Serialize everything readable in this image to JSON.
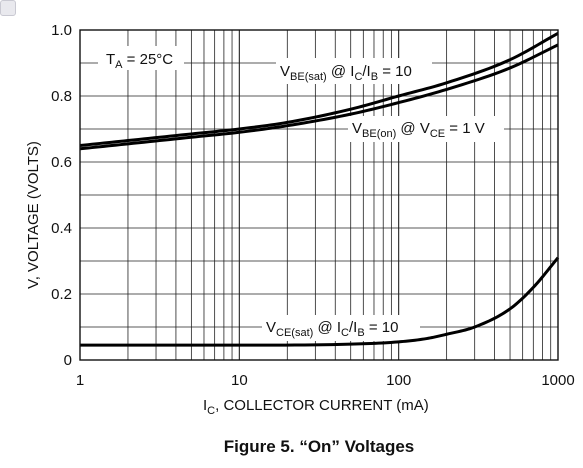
{
  "caption": "Figure 5. “On” Voltages",
  "chart_data": {
    "type": "line",
    "xscale": "log",
    "xlim": [
      1,
      1000
    ],
    "ylim": [
      0,
      1.0
    ],
    "grid": true,
    "xticks": [
      "1",
      "10",
      "100",
      "1000"
    ],
    "yticks": [
      "0",
      "0.2",
      "0.4",
      "0.6",
      "0.8",
      "1.0"
    ],
    "xlabel": {
      "main": "I",
      "sub": "C",
      "rest": ", COLLECTOR CURRENT (mA)"
    },
    "ylabel": "V, VOLTAGE (VOLTS)",
    "annotations": {
      "ta": {
        "main": "T",
        "sub": "A",
        "rest": " = 25°C"
      },
      "vbe_sat": {
        "v": "V",
        "vsub": "BE(sat)",
        "at": " @ I",
        "isub": "C",
        "slash": "/I",
        "bsub": "B",
        "val": " = 10"
      },
      "vbe_on": {
        "v": "V",
        "vsub": "BE(on)",
        "at": " @ V",
        "ce": "CE",
        "val": " = 1 V"
      },
      "vce_sat": {
        "v": "V",
        "vsub": "CE(sat)",
        "at": " @ I",
        "isub": "C",
        "slash": "/I",
        "bsub": "B",
        "val": " = 10"
      }
    },
    "series": [
      {
        "key": "vbe_sat",
        "x": [
          1,
          2,
          5,
          10,
          20,
          50,
          100,
          200,
          500,
          1000
        ],
        "y": [
          0.65,
          0.665,
          0.685,
          0.7,
          0.72,
          0.76,
          0.8,
          0.84,
          0.91,
          0.99
        ]
      },
      {
        "key": "vbe_on",
        "x": [
          1,
          2,
          5,
          10,
          20,
          50,
          100,
          200,
          500,
          1000
        ],
        "y": [
          0.64,
          0.655,
          0.675,
          0.69,
          0.71,
          0.745,
          0.78,
          0.82,
          0.885,
          0.955
        ]
      },
      {
        "key": "vce_sat",
        "x": [
          1,
          10,
          50,
          100,
          150,
          200,
          300,
          500,
          700,
          1000
        ],
        "y": [
          0.045,
          0.045,
          0.048,
          0.055,
          0.065,
          0.078,
          0.1,
          0.155,
          0.22,
          0.31
        ]
      }
    ]
  }
}
